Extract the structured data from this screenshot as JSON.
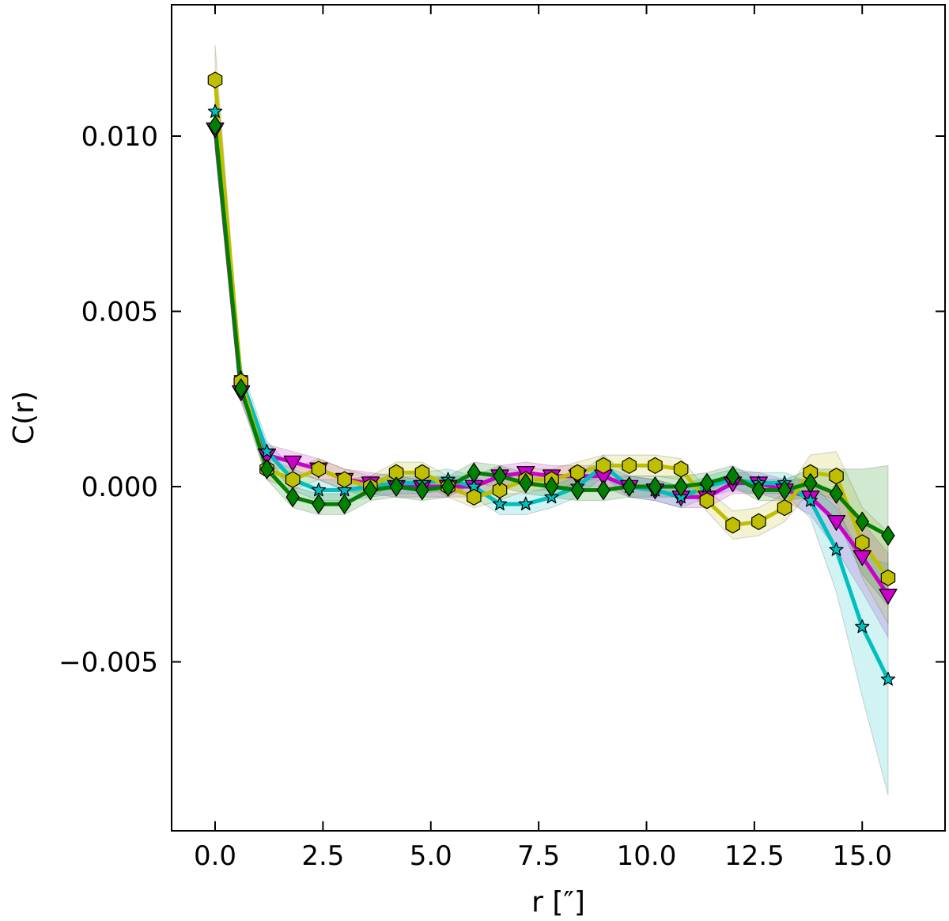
{
  "chart_data": {
    "type": "line",
    "xlabel": "r [″]",
    "ylabel": "C(r)",
    "xlim": [
      -1.0,
      16.8
    ],
    "ylim": [
      -0.0098,
      0.0137
    ],
    "xticks": [
      0.0,
      2.5,
      5.0,
      7.5,
      10.0,
      12.5,
      15.0
    ],
    "xtick_labels": [
      "0.0",
      "2.5",
      "5.0",
      "7.5",
      "10.0",
      "12.5",
      "15.0"
    ],
    "yticks": [
      -0.005,
      0.0,
      0.005,
      0.01
    ],
    "ytick_labels": [
      "−0.005",
      "0.000",
      "0.005",
      "0.010"
    ],
    "grid": false,
    "x": [
      0.0,
      0.6,
      1.2,
      1.8,
      2.4,
      3.0,
      3.6,
      4.2,
      4.8,
      5.4,
      6.0,
      6.6,
      7.2,
      7.8,
      8.4,
      9.0,
      9.6,
      10.2,
      10.8,
      11.4,
      12.0,
      12.6,
      13.2,
      13.8,
      14.4,
      15.0,
      15.6
    ],
    "series": [
      {
        "color": "#cc00cc",
        "marker": "triangle-down",
        "values": [
          0.0102,
          0.0027,
          0.0009,
          0.0007,
          0.0005,
          0.0002,
          0.0001,
          0.0,
          0.0,
          0.0,
          0.0,
          0.0003,
          0.0004,
          0.0003,
          0.0003,
          0.0003,
          0.0,
          -0.0001,
          -0.0003,
          -0.0003,
          0.0001,
          0.0001,
          -0.0001,
          -0.0003,
          -0.001,
          -0.002,
          -0.0031
        ],
        "band": [
          0.0006,
          0.0003,
          0.0003,
          0.0003,
          0.0003,
          0.0003,
          0.0003,
          0.0003,
          0.0003,
          0.0003,
          0.0003,
          0.0003,
          0.0003,
          0.0003,
          0.0003,
          0.0003,
          0.0003,
          0.0003,
          0.0003,
          0.0003,
          0.0003,
          0.0003,
          0.0003,
          0.0005,
          0.0008,
          0.001,
          0.0012
        ]
      },
      {
        "color": "#00bfbf",
        "marker": "star",
        "values": [
          0.0107,
          0.0031,
          0.001,
          0.0002,
          -0.0001,
          -0.0001,
          0.0,
          0.0001,
          0.0001,
          0.0002,
          0.0,
          -0.0005,
          -0.0005,
          -0.0003,
          0.0,
          0.0006,
          0.0,
          -0.0001,
          -0.0003,
          0.0,
          0.0002,
          0.0001,
          0.0001,
          -0.0004,
          -0.0018,
          -0.004,
          -0.0055
        ],
        "band": [
          0.0006,
          0.0003,
          0.0003,
          0.0003,
          0.0003,
          0.0003,
          0.0003,
          0.0003,
          0.0003,
          0.0003,
          0.0003,
          0.0003,
          0.0003,
          0.0003,
          0.0003,
          0.0003,
          0.0003,
          0.0003,
          0.0003,
          0.0003,
          0.0003,
          0.0003,
          0.0003,
          0.0005,
          0.0012,
          0.002,
          0.0033
        ]
      },
      {
        "color": "#bfbf00",
        "marker": "hexagon",
        "values": [
          0.0116,
          0.003,
          0.0005,
          0.0002,
          0.0005,
          0.0002,
          0.0,
          0.0004,
          0.0004,
          0.0,
          -0.0003,
          -0.0001,
          0.0002,
          0.0002,
          0.0004,
          0.0006,
          0.0006,
          0.0006,
          0.0005,
          -0.0004,
          -0.0011,
          -0.001,
          -0.0006,
          0.0004,
          0.0003,
          -0.0016,
          -0.0026
        ],
        "band": [
          0.001,
          0.0003,
          0.0003,
          0.0003,
          0.0003,
          0.0003,
          0.0003,
          0.0003,
          0.0003,
          0.0003,
          0.0003,
          0.0003,
          0.0003,
          0.0003,
          0.0003,
          0.0003,
          0.0003,
          0.0003,
          0.0003,
          0.0003,
          0.0004,
          0.0004,
          0.0004,
          0.0005,
          0.0007,
          0.001,
          0.0013
        ]
      },
      {
        "color": "#007f00",
        "marker": "diamond",
        "values": [
          0.0103,
          0.0028,
          0.0005,
          -0.0003,
          -0.0005,
          -0.0005,
          -0.0001,
          0.0,
          -0.0001,
          0.0,
          0.0004,
          0.0003,
          0.0001,
          0.0,
          -0.0001,
          -0.0001,
          0.0,
          0.0,
          0.0,
          0.0001,
          0.0003,
          -0.0001,
          -0.0001,
          0.0001,
          -0.0002,
          -0.001,
          -0.0014
        ],
        "band": [
          0.0006,
          0.0003,
          0.0003,
          0.0003,
          0.0003,
          0.0003,
          0.0003,
          0.0003,
          0.0003,
          0.0003,
          0.0003,
          0.0003,
          0.0003,
          0.0003,
          0.0003,
          0.0003,
          0.0003,
          0.0003,
          0.0003,
          0.0003,
          0.0003,
          0.0003,
          0.0003,
          0.0004,
          0.0007,
          0.0015,
          0.002
        ]
      }
    ]
  }
}
